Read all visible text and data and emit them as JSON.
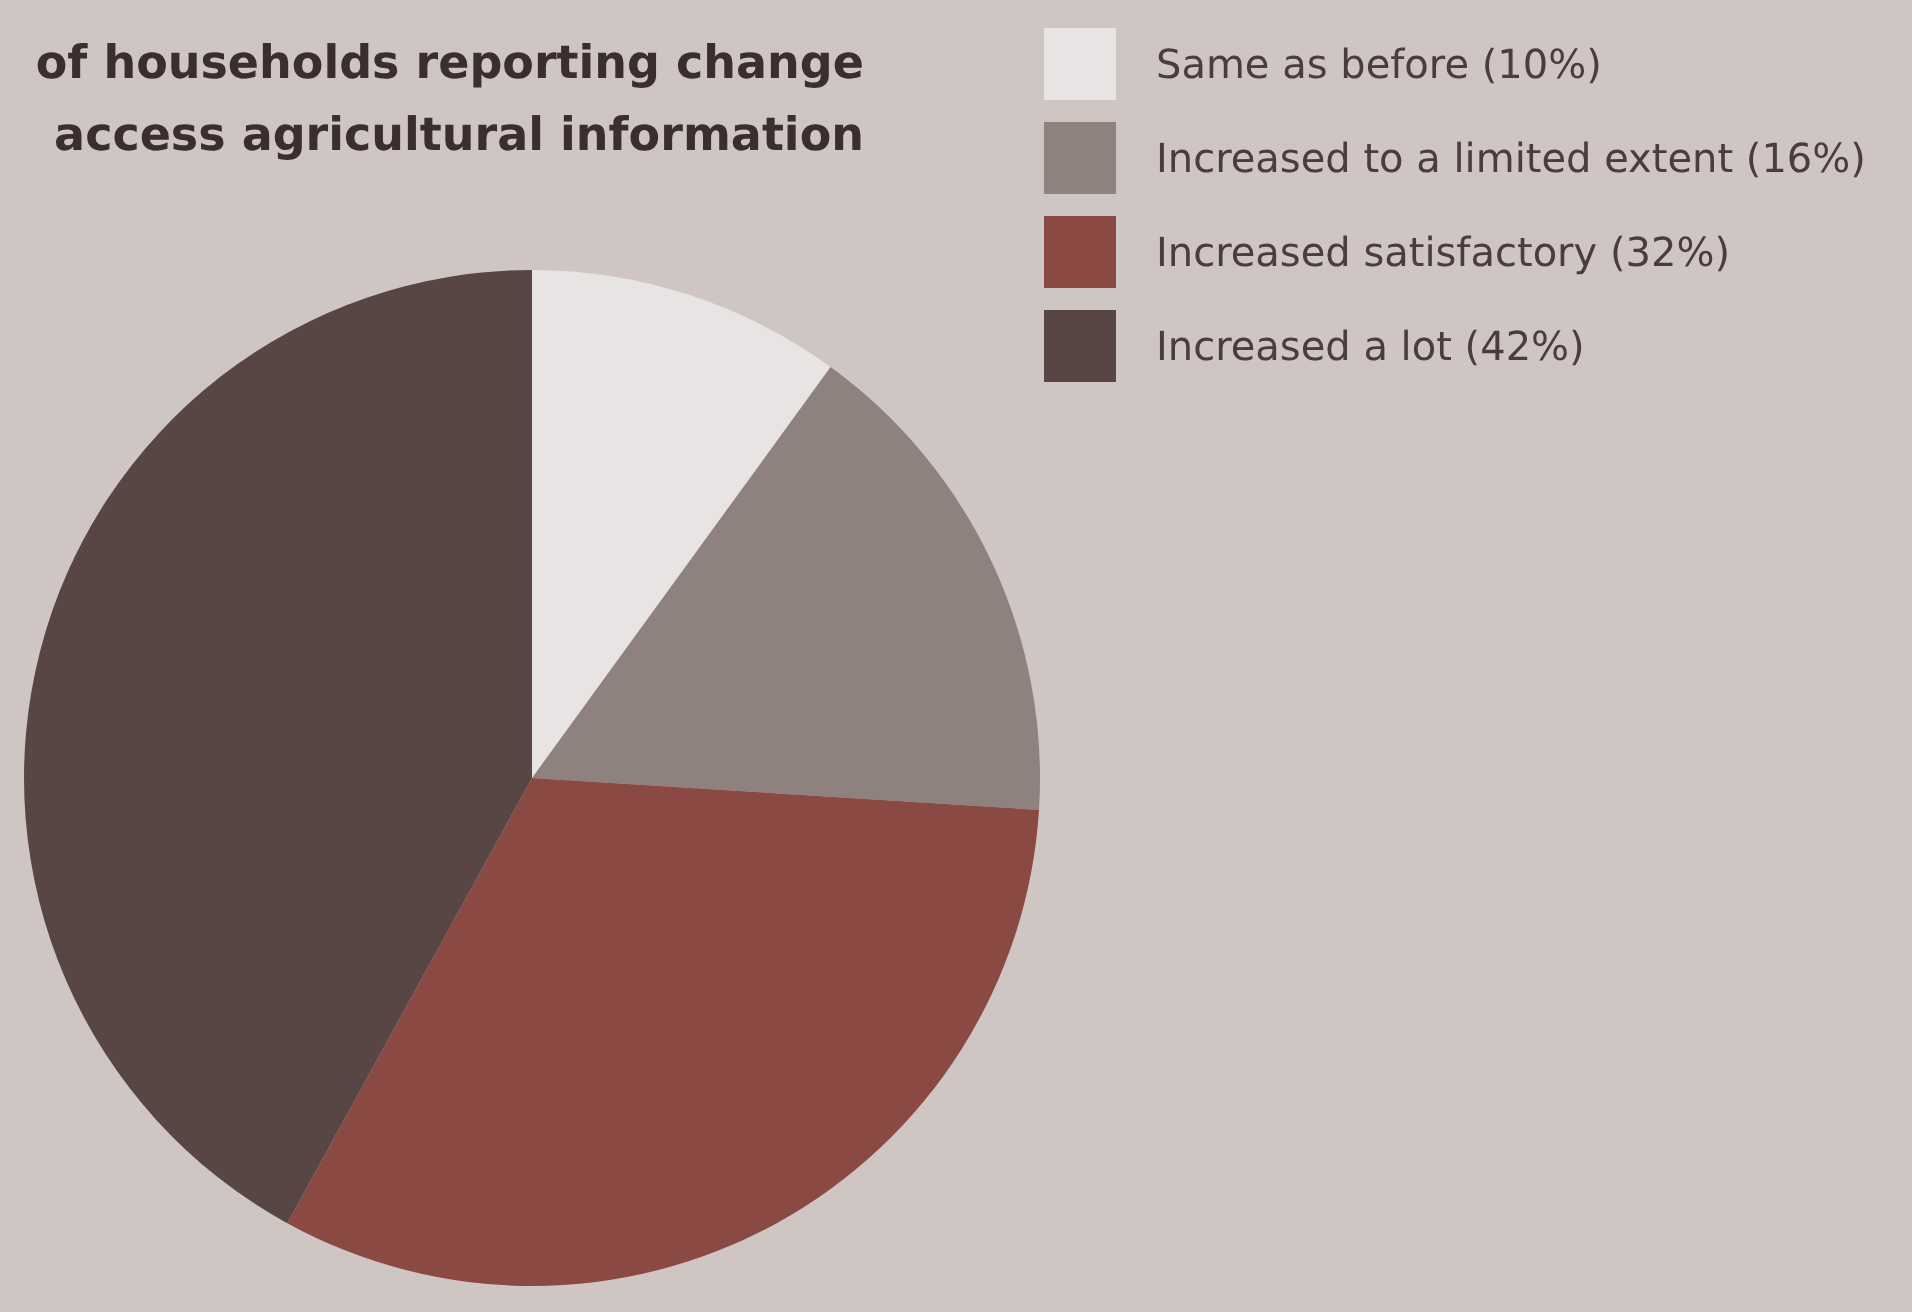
{
  "chart_data": {
    "type": "pie",
    "title": "of households reporting change\naccess agricultural information",
    "categories": [
      "Same as before (10%)",
      "Increased to a limited extent (16%)",
      "Increased satisfactory (32%)",
      "Increased a lot (42%)"
    ],
    "values": [
      10,
      16,
      32,
      42
    ],
    "colors": [
      "#e8e4e4",
      "#8f827e",
      "#8a4a43",
      "#584645"
    ],
    "legend": "top right"
  }
}
